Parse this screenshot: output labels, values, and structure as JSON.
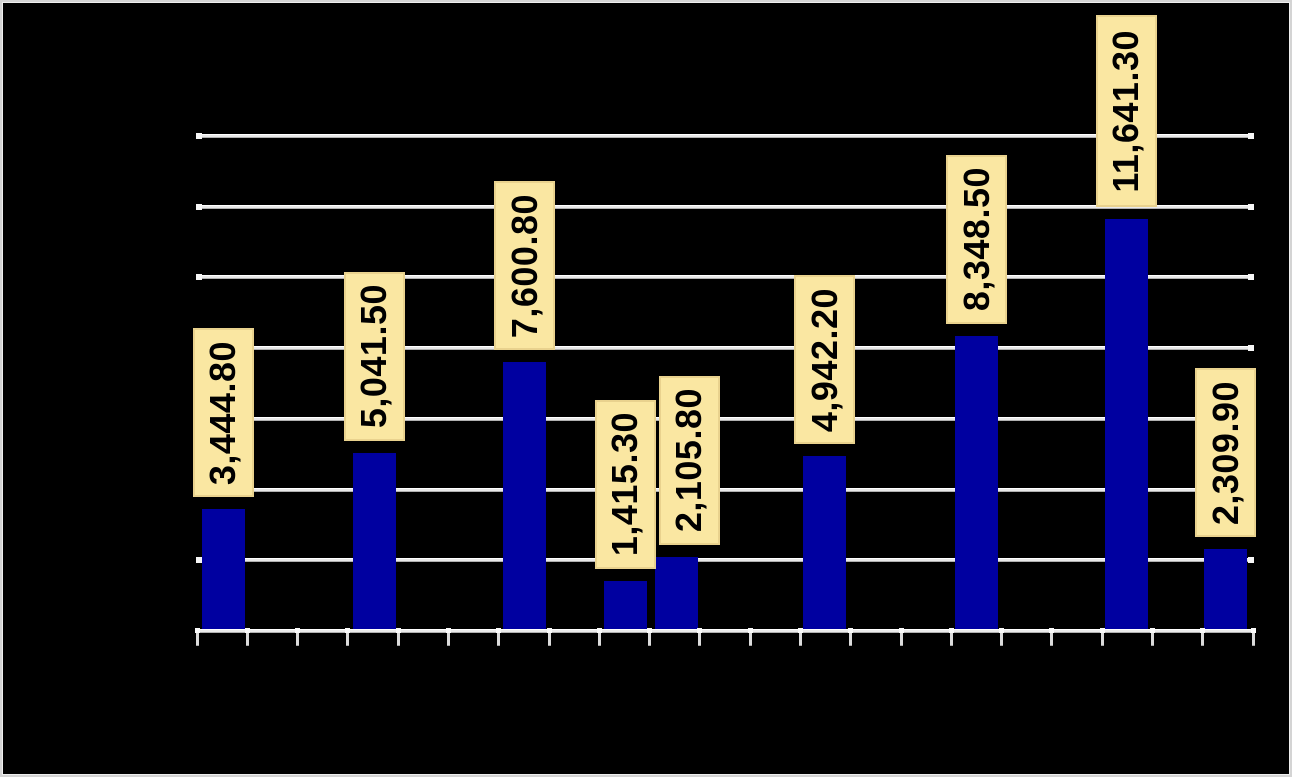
{
  "window": {
    "background": "#000000",
    "frame_border_color": "#D4D4D4"
  },
  "chart_data": {
    "type": "bar",
    "title": "",
    "values": [
      3444.8,
      5041.5,
      7600.8,
      1415.3,
      2105.8,
      4942.2,
      8348.5,
      11641.3,
      2309.9
    ],
    "data_labels": [
      "3,444.80",
      "5,041.50",
      "7,600.80",
      "1,415.30",
      "2,105.80",
      "4,942.20",
      "8,348.50",
      "11,641.30",
      "2,309.90"
    ],
    "xlabel": "",
    "ylabel": "",
    "ylim": [
      0,
      14000
    ],
    "y_gridline_step": 2000,
    "grid": true,
    "legend": "none",
    "x_slot_count": 21,
    "x_bar_slots": [
      0,
      3,
      6,
      8,
      9,
      12,
      15,
      18,
      20
    ],
    "x_axis_tick_count": 22,
    "bar_color": "#0000A0",
    "gridline_color": "#E9E9E9",
    "axis_color": "#EBEBEB",
    "data_label_fill": "#FAE7A2",
    "data_label_border": "#E9D28E",
    "data_label_text_color": "#000000",
    "plot_background": "#000000"
  }
}
